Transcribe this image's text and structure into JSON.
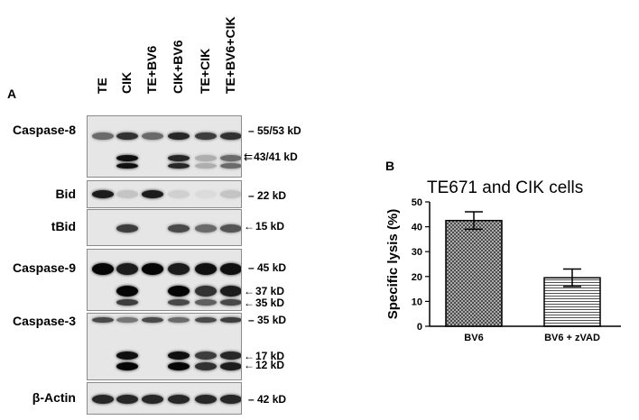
{
  "panel_a": {
    "letter": "A",
    "lanes": [
      "TE",
      "CIK",
      "TE+BV6",
      "CIK+BV6",
      "TE+CIK",
      "TE+BV6+CIK"
    ],
    "rows": [
      {
        "label": "Caspase-8",
        "markers": [
          {
            "text": "– 55/53 kD"
          },
          {
            "text": "43/41 kD",
            "arrows": "⇇"
          }
        ]
      },
      {
        "label": "Bid",
        "markers": [
          {
            "text": "– 22 kD"
          }
        ]
      },
      {
        "label": "tBid",
        "markers": [
          {
            "text": "15 kD",
            "arrows": "←"
          }
        ]
      },
      {
        "label": "Caspase-9",
        "markers": [
          {
            "text": "– 45 kD"
          },
          {
            "text": "37 kD",
            "arrows": "←"
          },
          {
            "text": "35 kD",
            "arrows": "←"
          }
        ]
      },
      {
        "label": "Caspase-3",
        "markers": [
          {
            "text": "– 35 kD"
          },
          {
            "text": "17 kD",
            "arrows": "←"
          },
          {
            "text": "12 kD",
            "arrows": "←"
          }
        ]
      },
      {
        "label": "β-Actin",
        "markers": [
          {
            "text": "– 42 kD"
          }
        ]
      }
    ],
    "band_intensity": {
      "caspase8_full": [
        0.55,
        0.8,
        0.55,
        0.85,
        0.75,
        0.8
      ],
      "caspase8_cleaved": [
        0.0,
        0.95,
        0.0,
        0.85,
        0.25,
        0.55
      ],
      "bid": [
        0.9,
        0.15,
        0.9,
        0.1,
        0.05,
        0.15
      ],
      "tbid": [
        0.0,
        0.75,
        0.0,
        0.7,
        0.55,
        0.65
      ],
      "caspase9_full": [
        1.0,
        0.9,
        1.0,
        0.9,
        0.95,
        0.95
      ],
      "caspase9_37": [
        0.0,
        1.0,
        0.0,
        1.0,
        0.8,
        0.9
      ],
      "caspase9_35": [
        0.0,
        0.75,
        0.0,
        0.7,
        0.6,
        0.7
      ],
      "caspase3_full": [
        0.7,
        0.5,
        0.7,
        0.55,
        0.7,
        0.75
      ],
      "caspase3_17": [
        0.0,
        0.95,
        0.0,
        0.95,
        0.75,
        0.85
      ],
      "caspase3_12": [
        0.0,
        1.0,
        0.0,
        1.0,
        0.8,
        0.9
      ],
      "actin": [
        0.85,
        0.85,
        0.85,
        0.85,
        0.85,
        0.85
      ]
    }
  },
  "panel_b": {
    "letter": "B",
    "chart_data": {
      "type": "bar",
      "title": "TE671 and CIK cells",
      "ylabel": "Specific lysis (%)",
      "xlabel": "",
      "categories": [
        "BV6",
        "BV6 + zVAD"
      ],
      "values": [
        42.5,
        19.5
      ],
      "errors": [
        3.5,
        3.5
      ],
      "ylim": [
        0,
        50
      ],
      "yticks": [
        0,
        10,
        20,
        30,
        40,
        50
      ],
      "patterns": [
        "crosshatch",
        "horizontal-lines"
      ],
      "grid": false,
      "legend": "none"
    }
  }
}
